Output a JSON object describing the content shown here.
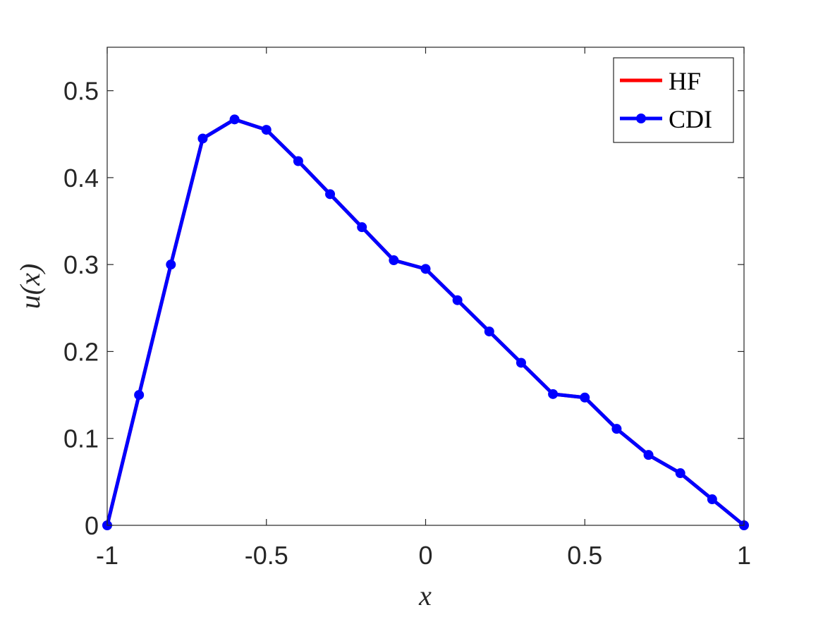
{
  "chart_data": {
    "type": "line",
    "title": "",
    "xlabel": "x",
    "ylabel": "u(x)",
    "xlim": [
      -1,
      1
    ],
    "ylim": [
      0,
      0.55
    ],
    "xticks": [
      -1,
      -0.5,
      0,
      0.5,
      1
    ],
    "xtick_labels": [
      "-1",
      "-0.5",
      "0",
      "0.5",
      "1"
    ],
    "yticks": [
      0,
      0.1,
      0.2,
      0.3,
      0.4,
      0.5
    ],
    "ytick_labels": [
      "0",
      "0.1",
      "0.2",
      "0.3",
      "0.4",
      "0.5"
    ],
    "grid": false,
    "legend_position": "top-right",
    "series": [
      {
        "name": "HF",
        "color": "#ff0000",
        "marker": "none",
        "x": [
          -1.0,
          -0.9,
          -0.8,
          -0.7,
          -0.6,
          -0.5,
          -0.4,
          -0.3,
          -0.2,
          -0.1,
          0.0,
          0.1,
          0.2,
          0.3,
          0.4,
          0.5,
          0.6,
          0.7,
          0.8,
          0.9,
          1.0
        ],
        "y": [
          0.0,
          0.15,
          0.3,
          0.445,
          0.467,
          0.455,
          0.419,
          0.381,
          0.343,
          0.305,
          0.295,
          0.259,
          0.223,
          0.187,
          0.151,
          0.147,
          0.111,
          0.081,
          0.06,
          0.03,
          0.0
        ]
      },
      {
        "name": "CDI",
        "color": "#0000ff",
        "marker": "circle",
        "x": [
          -1.0,
          -0.9,
          -0.8,
          -0.7,
          -0.6,
          -0.5,
          -0.4,
          -0.3,
          -0.2,
          -0.1,
          0.0,
          0.1,
          0.2,
          0.3,
          0.4,
          0.5,
          0.6,
          0.7,
          0.8,
          0.9,
          1.0
        ],
        "y": [
          0.0,
          0.15,
          0.3,
          0.445,
          0.467,
          0.455,
          0.419,
          0.381,
          0.343,
          0.305,
          0.295,
          0.259,
          0.223,
          0.187,
          0.151,
          0.147,
          0.111,
          0.081,
          0.06,
          0.03,
          0.0
        ]
      }
    ]
  }
}
